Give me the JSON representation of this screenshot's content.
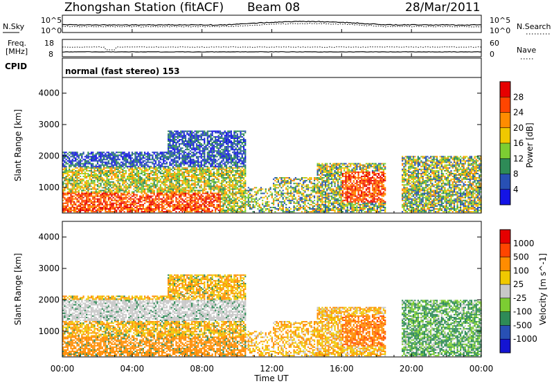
{
  "header": {
    "station": "Zhongshan Station (fitACF)",
    "beam": "Beam 08",
    "date": "28/Mar/2011"
  },
  "noise_panel": {
    "left_label": "N.Sky",
    "right_label": "N.Search",
    "left_ticks": [
      "10^5",
      "10^0"
    ],
    "right_ticks": [
      "10^5",
      "10^0"
    ]
  },
  "freq_panel": {
    "left_label_1": "Freq.",
    "left_label_2": "[MHz]",
    "right_label": "Nave",
    "left_ticks": [
      "18",
      "8"
    ],
    "right_ticks": [
      "60",
      "0"
    ]
  },
  "cpid_panel": {
    "label": "CPID",
    "text": "normal (fast stereo) 153"
  },
  "colors": {
    "power": [
      "#1414e6",
      "#2850b4",
      "#2e8b57",
      "#7ccd32",
      "#f0c800",
      "#ff8c00",
      "#ff4500",
      "#e60000"
    ],
    "velocity": [
      "#1414d2",
      "#2850b4",
      "#2e8b57",
      "#7ccd32",
      "#c8c8c8",
      "#f0c800",
      "#ff8c00",
      "#ff4500",
      "#e60000"
    ]
  },
  "chart_data": [
    {
      "type": "heatmap",
      "name": "power",
      "ylabel": "Slant Range [km]",
      "ylim": [
        180,
        4500
      ],
      "yticks": [
        "4000",
        "3000",
        "2000",
        "1000"
      ],
      "colorbar_label": "Power [dB]",
      "colorbar_ticks": [
        "28",
        "24",
        "20",
        "16",
        "12",
        "8",
        "4"
      ],
      "colorbar_range": [
        0,
        32
      ]
    },
    {
      "type": "heatmap",
      "name": "velocity",
      "ylabel": "Slant Range [km]",
      "ylim": [
        180,
        4500
      ],
      "yticks": [
        "4000",
        "3000",
        "2000",
        "1000"
      ],
      "colorbar_label": "Velocity [m s^-1]",
      "colorbar_ticks": [
        "1000",
        "500",
        "100",
        "25",
        "-25",
        "-100",
        "-500",
        "-1000"
      ]
    }
  ],
  "time_axis": {
    "ticks": [
      "00:00",
      "04:00",
      "08:00",
      "12:00",
      "16:00",
      "20:00",
      "00:00"
    ],
    "label": "Time UT"
  }
}
